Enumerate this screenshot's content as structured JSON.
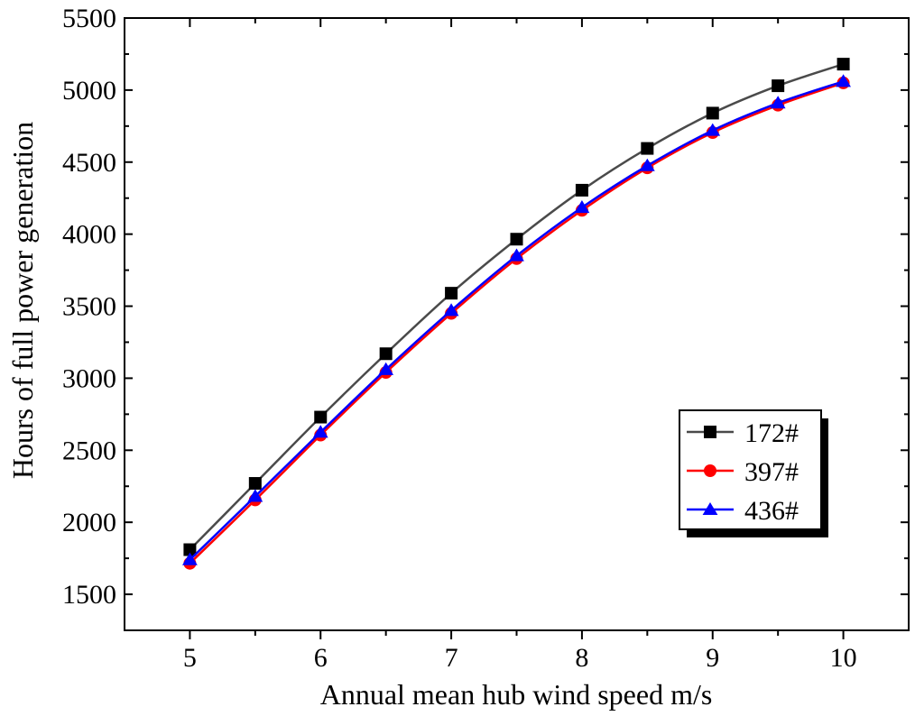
{
  "chart_data": {
    "type": "line",
    "title": "",
    "xlabel": "Annual mean hub wind speed  m/s",
    "ylabel": "Hours of full power generation",
    "xlim": [
      4.5,
      10.5
    ],
    "ylim": [
      1250,
      5500
    ],
    "xticks": [
      5,
      6,
      7,
      8,
      9,
      10
    ],
    "yticks": [
      1500,
      2000,
      2500,
      3000,
      3500,
      4000,
      4500,
      5000,
      5500
    ],
    "minor_xticks": [
      5.5,
      6.5,
      7.5,
      8.5,
      9.5
    ],
    "grid": false,
    "legend_position": "bottom-right",
    "x": [
      5,
      5.5,
      6,
      6.5,
      7,
      7.5,
      8,
      8.5,
      9,
      9.5,
      10
    ],
    "series": [
      {
        "name": "172#",
        "color": "#000000",
        "line_color": "#4a4a4a",
        "marker": "square",
        "values": [
          1810,
          2270,
          2730,
          3170,
          3590,
          3965,
          4305,
          4595,
          4840,
          5030,
          5180
        ]
      },
      {
        "name": "397#",
        "color": "#ff0000",
        "line_color": "#ff0000",
        "marker": "circle",
        "values": [
          1715,
          2155,
          2605,
          3040,
          3450,
          3830,
          4165,
          4460,
          4705,
          4895,
          5050
        ]
      },
      {
        "name": "436#",
        "color": "#0000ff",
        "line_color": "#0000ff",
        "marker": "triangle",
        "values": [
          1740,
          2180,
          2625,
          3060,
          3470,
          3850,
          4185,
          4475,
          4720,
          4910,
          5060
        ]
      }
    ]
  }
}
